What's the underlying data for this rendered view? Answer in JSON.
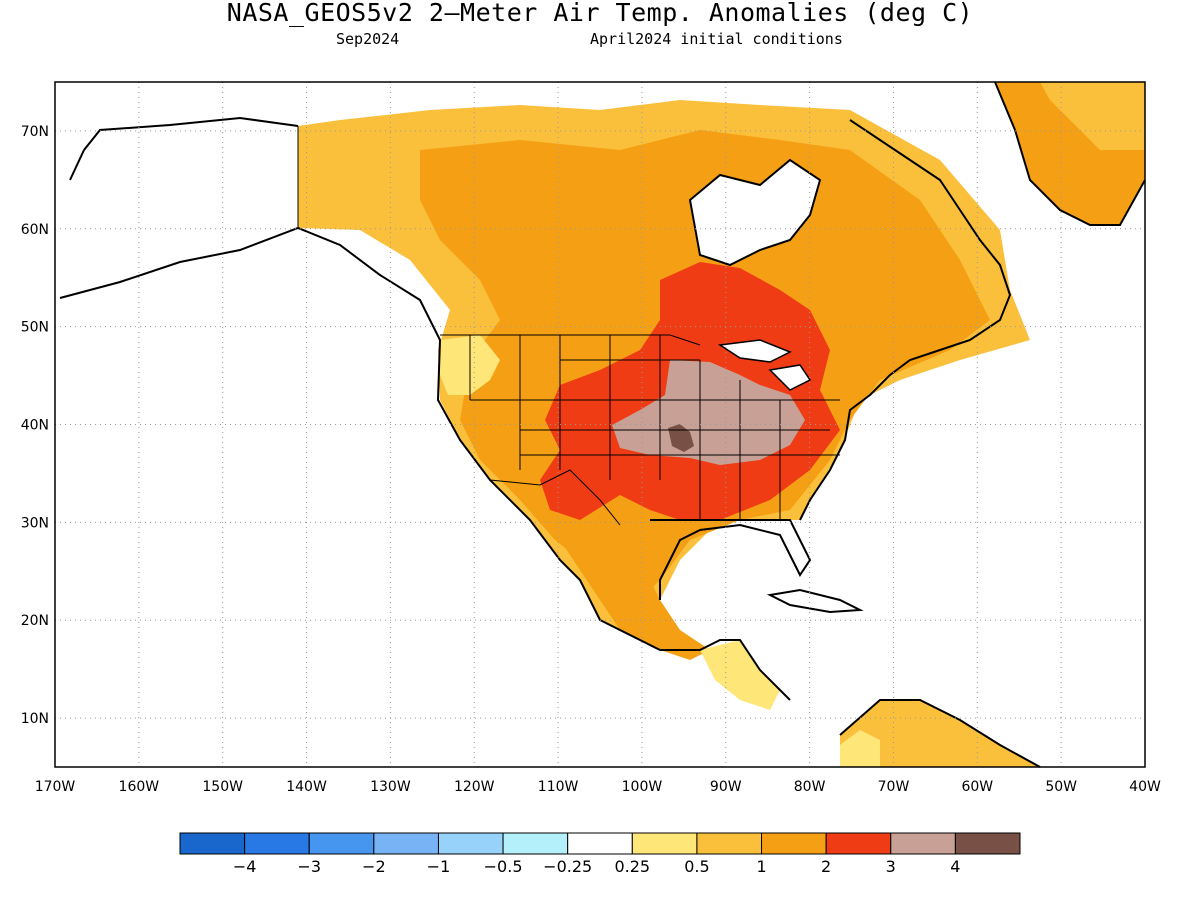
{
  "title": "NASA_GEOS5v2 2–Meter Air Temp. Anomalies (deg C)",
  "subtitle_left": "Sep2024",
  "subtitle_right": "April2024 initial conditions",
  "map": {
    "lon_range": [
      -170,
      -40
    ],
    "lat_range": [
      5,
      75
    ],
    "lat_labels": [
      "70N",
      "60N",
      "50N",
      "40N",
      "30N",
      "20N",
      "10N"
    ],
    "lon_labels": [
      "170W",
      "160W",
      "150W",
      "140W",
      "130W",
      "120W",
      "110W",
      "100W",
      "90W",
      "80W",
      "70W",
      "60W",
      "50W",
      "40W"
    ],
    "grid": true
  },
  "colorbar": {
    "labels": [
      "−4",
      "−3",
      "−2",
      "−1",
      "−0.5",
      "−0.25",
      "0.25",
      "0.5",
      "1",
      "2",
      "3",
      "4"
    ],
    "colors": [
      "#1966cc",
      "#2878e6",
      "#4696f0",
      "#78b4f5",
      "#96d2fa",
      "#b4f0fa",
      "#ffffff",
      "#ffe678",
      "#fac03c",
      "#f5a014",
      "#f03c14",
      "#c8a096",
      "#785046"
    ]
  }
}
